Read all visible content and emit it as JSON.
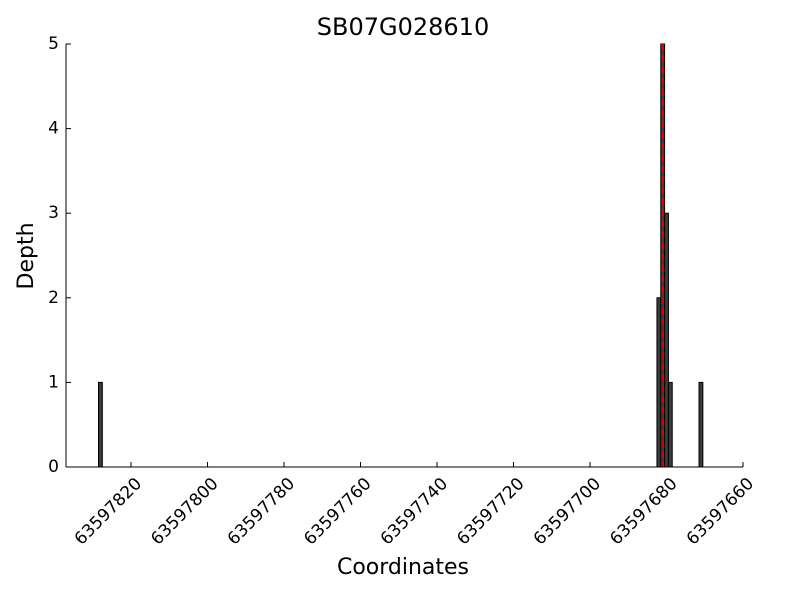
{
  "chart_data": {
    "type": "bar",
    "title": "SB07G028610",
    "x_label": "Coordinates",
    "y_label": "Depth",
    "x": [
      63597828,
      63597682,
      63597681,
      63597680,
      63597679,
      63597671
    ],
    "values": [
      1,
      2,
      5,
      3,
      1,
      1
    ],
    "color": "#3c3c3c",
    "xlim": [
      63597837,
      63597660
    ],
    "xticks": [
      63597820,
      63597800,
      63597780,
      63597760,
      63597740,
      63597720,
      63597700,
      63597680,
      63597660
    ],
    "ylim": [
      0,
      5
    ],
    "yticks": [
      0,
      1,
      2,
      3,
      4,
      5
    ],
    "vline": {
      "x": 63597681,
      "color": "#e00000"
    }
  }
}
